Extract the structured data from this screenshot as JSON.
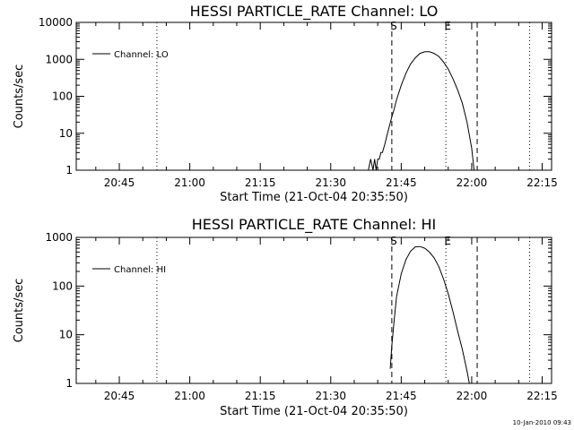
{
  "footer_timestamp": "10-Jan-2010 09:43",
  "chart_data": [
    {
      "type": "line",
      "title": "HESSI PARTICLE_RATE Channel: LO",
      "xlabel": "Start Time (21-Oct-04 20:35:50)",
      "ylabel": "Counts/sec",
      "yscale": "log",
      "xlim": [
        "20:35:50",
        "22:17:00"
      ],
      "ylim": [
        1,
        10000
      ],
      "xticks": [
        "20:45",
        "21:00",
        "21:15",
        "21:30",
        "21:45",
        "22:00",
        "22:15"
      ],
      "yticks": [
        "1",
        "10",
        "100",
        "1000",
        "10000"
      ],
      "series": [
        {
          "name": "Channel: LO",
          "x": [
            "21:38:00",
            "21:38:30",
            "21:39:00",
            "21:39:20",
            "21:39:40",
            "21:40:00",
            "21:40:20",
            "21:40:40",
            "21:41:00",
            "21:41:30",
            "21:42:00",
            "21:42:30",
            "21:43:00",
            "21:43:30",
            "21:44:00",
            "21:45:00",
            "21:46:00",
            "21:47:00",
            "21:48:00",
            "21:49:00",
            "21:50:00",
            "21:51:00",
            "21:52:00",
            "21:53:00",
            "21:54:00",
            "21:55:00",
            "21:56:00",
            "21:57:00",
            "21:58:00",
            "21:59:00",
            "22:00:00",
            "22:00:30"
          ],
          "values": [
            1,
            2,
            1,
            2,
            1,
            2,
            2,
            3,
            3,
            5,
            9,
            16,
            28,
            45,
            80,
            200,
            420,
            750,
            1100,
            1450,
            1600,
            1600,
            1450,
            1200,
            850,
            550,
            300,
            150,
            65,
            20,
            4,
            1
          ]
        }
      ],
      "annotations": [
        {
          "text": "S",
          "x": "21:43:00",
          "line": "dashed"
        },
        {
          "text": "E",
          "x": "21:54:30",
          "line": "dotted"
        }
      ],
      "vlines": [
        {
          "x": "20:53:00",
          "style": "dotted"
        },
        {
          "x": "22:01:10",
          "style": "dashed"
        },
        {
          "x": "22:12:20",
          "style": "dotted"
        }
      ]
    },
    {
      "type": "line",
      "title": "HESSI PARTICLE_RATE Channel: HI",
      "xlabel": "Start Time (21-Oct-04 20:35:50)",
      "ylabel": "Counts/sec",
      "yscale": "log",
      "xlim": [
        "20:35:50",
        "22:17:00"
      ],
      "ylim": [
        1,
        1000
      ],
      "xticks": [
        "20:45",
        "21:00",
        "21:15",
        "21:30",
        "21:45",
        "22:00",
        "22:15"
      ],
      "yticks": [
        "1",
        "10",
        "100",
        "1000"
      ],
      "series": [
        {
          "name": "Channel: HI",
          "x": [
            "21:42:40",
            "21:43:00",
            "21:43:30",
            "21:44:00",
            "21:45:00",
            "21:46:00",
            "21:47:00",
            "21:48:00",
            "21:49:00",
            "21:50:00",
            "21:51:00",
            "21:52:00",
            "21:53:00",
            "21:54:00",
            "21:55:00",
            "21:56:00",
            "21:57:00",
            "21:58:00",
            "21:59:00",
            "21:59:30"
          ],
          "values": [
            2,
            6,
            20,
            60,
            180,
            350,
            520,
            640,
            650,
            600,
            500,
            380,
            250,
            140,
            70,
            30,
            12,
            5,
            1.8,
            1
          ]
        }
      ],
      "annotations": [
        {
          "text": "S",
          "x": "21:43:00",
          "line": "dashed"
        },
        {
          "text": "E",
          "x": "21:54:30",
          "line": "dotted"
        }
      ],
      "vlines": [
        {
          "x": "20:53:00",
          "style": "dotted"
        },
        {
          "x": "22:01:10",
          "style": "dashed"
        },
        {
          "x": "22:12:20",
          "style": "dotted"
        }
      ]
    }
  ]
}
